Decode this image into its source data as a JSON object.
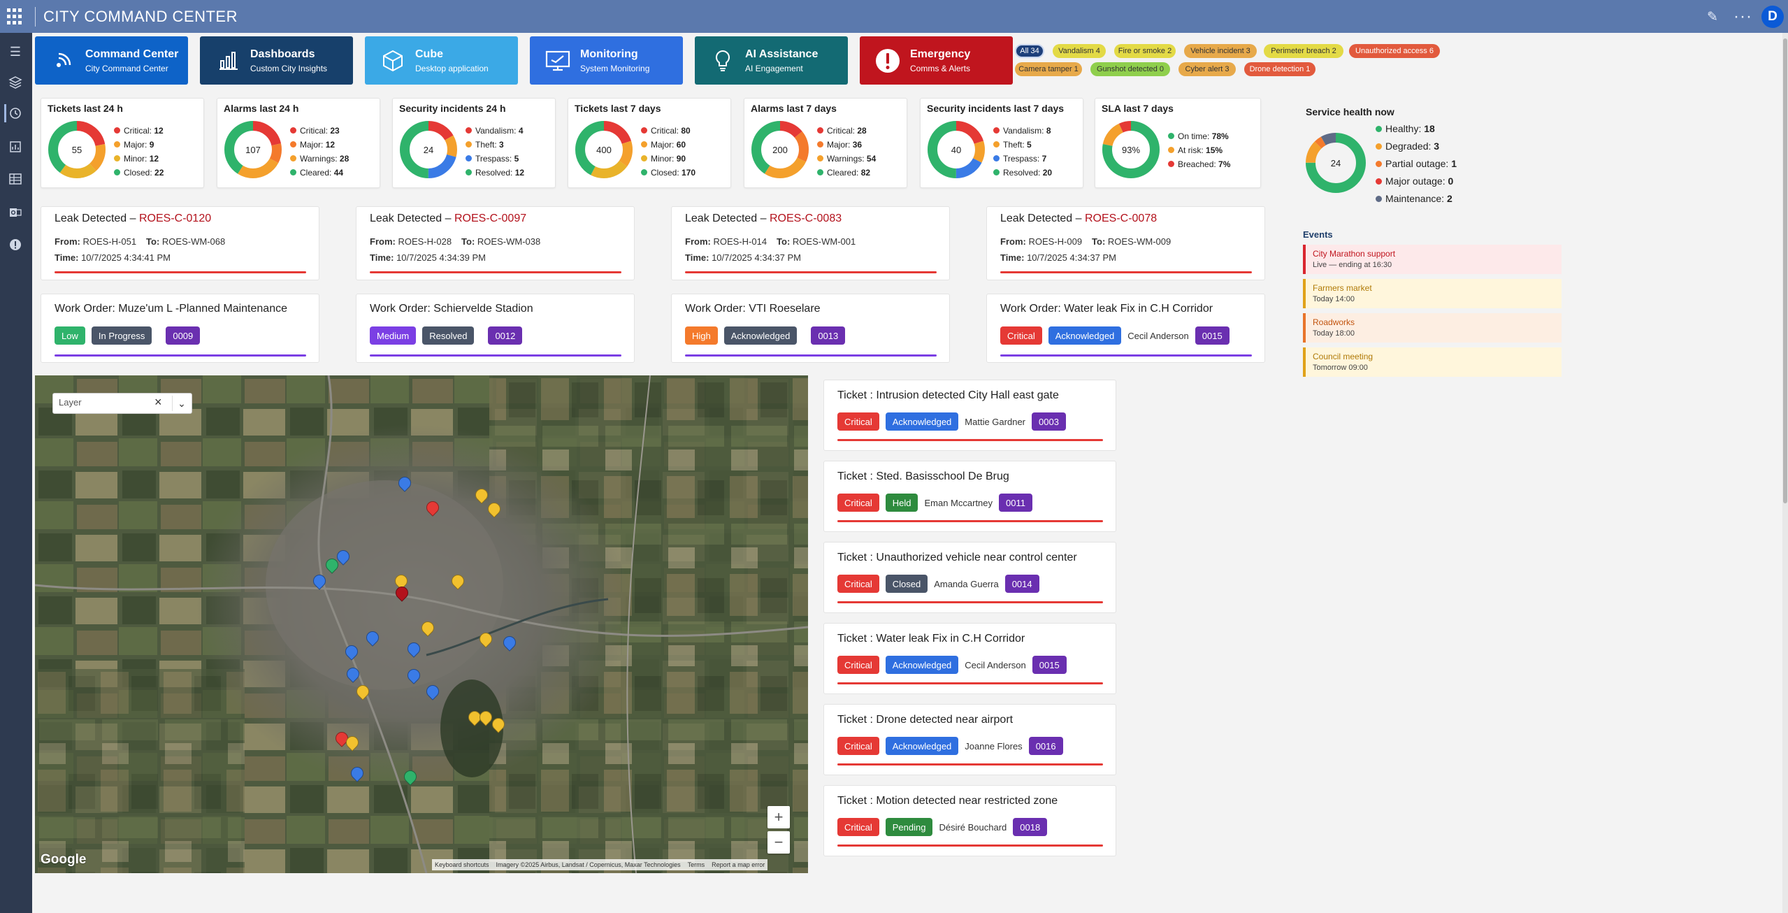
{
  "app": {
    "title": "CITY COMMAND CENTER",
    "user_initial": "D"
  },
  "nav_tiles": [
    {
      "name": "Command Center",
      "sub": "City Command Center",
      "color": "#0e63c8",
      "icon": "signal-icon"
    },
    {
      "name": "Dashboards",
      "sub": "Custom City Insights",
      "color": "#17406b",
      "icon": "bar-chart-icon"
    },
    {
      "name": "Cube",
      "sub": "Desktop application",
      "color": "#3ba9e6",
      "icon": "cube-icon"
    },
    {
      "name": "Monitoring",
      "sub": "System Monitoring",
      "color": "#2f6fe0",
      "icon": "monitor-icon"
    },
    {
      "name": "AI Assistance",
      "sub": "AI Engagement",
      "color": "#136a73",
      "icon": "lightbulb-icon"
    },
    {
      "name": "Emergency",
      "sub": "Comms & Alerts",
      "color": "#c0151e",
      "icon": "alert-icon"
    }
  ],
  "chips": [
    {
      "label": "All 34",
      "bg": "#1d3f7a",
      "fg": "#ffffff"
    },
    {
      "label": "Vandalism 4",
      "bg": "#e3da46",
      "fg": "#333333"
    },
    {
      "label": "Fire or smoke 2",
      "bg": "#e3da46",
      "fg": "#333333"
    },
    {
      "label": "Vehicle incident 3",
      "bg": "#e7a94a",
      "fg": "#333333"
    },
    {
      "label": "Perimeter breach 2",
      "bg": "#e3da46",
      "fg": "#333333"
    },
    {
      "label": "Unauthorized access 6",
      "bg": "#e25a3d",
      "fg": "#ffffff"
    },
    {
      "label": "Camera tamper 1",
      "bg": "#e7a94a",
      "fg": "#333333"
    },
    {
      "label": "Gunshot detected 0",
      "bg": "#8fcf4c",
      "fg": "#333333"
    },
    {
      "label": "Cyber alert 3",
      "bg": "#e7a94a",
      "fg": "#333333"
    },
    {
      "label": "Drone detection 1",
      "bg": "#e25a3d",
      "fg": "#ffffff"
    }
  ],
  "stats": [
    {
      "title": "Tickets last 24 h",
      "total": "55",
      "items": [
        {
          "label": "Critical:",
          "value": "12",
          "color": "#e53935"
        },
        {
          "label": "Major:",
          "value": "9",
          "color": "#f4a02c"
        },
        {
          "label": "Minor:",
          "value": "12",
          "color": "#e9b32a"
        },
        {
          "label": "Closed:",
          "value": "22",
          "color": "#2fb36b"
        }
      ]
    },
    {
      "title": "Alarms last 24 h",
      "total": "107",
      "items": [
        {
          "label": "Critical:",
          "value": "23",
          "color": "#e53935"
        },
        {
          "label": "Major:",
          "value": "12",
          "color": "#f47a2c"
        },
        {
          "label": "Warnings:",
          "value": "28",
          "color": "#f4a02c"
        },
        {
          "label": "Cleared:",
          "value": "44",
          "color": "#2fb36b"
        }
      ]
    },
    {
      "title": "Security incidents 24 h",
      "total": "24",
      "items": [
        {
          "label": "Vandalism:",
          "value": "4",
          "color": "#e53935"
        },
        {
          "label": "Theft:",
          "value": "3",
          "color": "#f4a02c"
        },
        {
          "label": "Trespass:",
          "value": "5",
          "color": "#3a7be6"
        },
        {
          "label": "Resolved:",
          "value": "12",
          "color": "#2fb36b"
        }
      ]
    },
    {
      "title": "Tickets last 7 days",
      "total": "400",
      "items": [
        {
          "label": "Critical:",
          "value": "80",
          "color": "#e53935"
        },
        {
          "label": "Major:",
          "value": "60",
          "color": "#f4a02c"
        },
        {
          "label": "Minor:",
          "value": "90",
          "color": "#e9b32a"
        },
        {
          "label": "Closed:",
          "value": "170",
          "color": "#2fb36b"
        }
      ]
    },
    {
      "title": "Alarms last 7 days",
      "total": "200",
      "items": [
        {
          "label": "Critical:",
          "value": "28",
          "color": "#e53935"
        },
        {
          "label": "Major:",
          "value": "36",
          "color": "#f47a2c"
        },
        {
          "label": "Warnings:",
          "value": "54",
          "color": "#f4a02c"
        },
        {
          "label": "Cleared:",
          "value": "82",
          "color": "#2fb36b"
        }
      ]
    },
    {
      "title": "Security incidents last 7 days",
      "total": "40",
      "items": [
        {
          "label": "Vandalism:",
          "value": "8",
          "color": "#e53935"
        },
        {
          "label": "Theft:",
          "value": "5",
          "color": "#f4a02c"
        },
        {
          "label": "Trespass:",
          "value": "7",
          "color": "#3a7be6"
        },
        {
          "label": "Resolved:",
          "value": "20",
          "color": "#2fb36b"
        }
      ]
    },
    {
      "title": "SLA last 7 days",
      "total": "93%",
      "items": [
        {
          "label": "On time:",
          "value": "78%",
          "color": "#2fb36b"
        },
        {
          "label": "At risk:",
          "value": "15%",
          "color": "#f4a02c"
        },
        {
          "label": "Breached:",
          "value": "7%",
          "color": "#e53935"
        }
      ]
    }
  ],
  "service_health": {
    "title": "Service health now",
    "total": "24",
    "items": [
      {
        "label": "Healthy:",
        "value": "18",
        "color": "#2fb36b"
      },
      {
        "label": "Degraded:",
        "value": "3",
        "color": "#f4a02c"
      },
      {
        "label": "Partial outage:",
        "value": "1",
        "color": "#f47a2c"
      },
      {
        "label": "Major outage:",
        "value": "0",
        "color": "#e53935"
      },
      {
        "label": "Maintenance:",
        "value": "2",
        "color": "#5e6b86"
      }
    ]
  },
  "events": {
    "title": "Events",
    "items": [
      {
        "name": "City Marathon support",
        "sub": "Live — ending at 16:30",
        "color": "#d9262f",
        "bg": "#fde9ea",
        "fg": "#c0151e"
      },
      {
        "name": "Farmers market",
        "sub": "Today 14:00",
        "color": "#e0a21a",
        "bg": "#fff6dc",
        "fg": "#b07a08"
      },
      {
        "name": "Roadworks",
        "sub": "Today 18:00",
        "color": "#e8742a",
        "bg": "#fdeee2",
        "fg": "#c2540f"
      },
      {
        "name": "Council meeting",
        "sub": "Tomorrow 09:00",
        "color": "#e0a21a",
        "bg": "#fff6dc",
        "fg": "#b07a08"
      }
    ]
  },
  "leaks": [
    {
      "prefix": "Leak Detected – ",
      "id": "ROES-C-0120",
      "from_label": "From:",
      "from": "ROES-H-051",
      "to_label": "To:",
      "to": "ROES-WM-068",
      "time_label": "Time:",
      "time": "10/7/2025 4:34:41 PM"
    },
    {
      "prefix": "Leak Detected – ",
      "id": "ROES-C-0097",
      "from_label": "From:",
      "from": "ROES-H-028",
      "to_label": "To:",
      "to": "ROES-WM-038",
      "time_label": "Time:",
      "time": "10/7/2025 4:34:39 PM"
    },
    {
      "prefix": "Leak Detected – ",
      "id": "ROES-C-0083",
      "from_label": "From:",
      "from": "ROES-H-014",
      "to_label": "To:",
      "to": "ROES-WM-001",
      "time_label": "Time:",
      "time": "10/7/2025 4:34:37 PM"
    },
    {
      "prefix": "Leak Detected – ",
      "id": "ROES-C-0078",
      "from_label": "From:",
      "from": "ROES-H-009",
      "to_label": "To:",
      "to": "ROES-WM-009",
      "time_label": "Time:",
      "time": "10/7/2025 4:34:37 PM"
    }
  ],
  "work_orders": [
    {
      "title": "Work Order: Muze'um L -Planned Maintenance",
      "priority": "Low",
      "priority_color": "#2fb36b",
      "status": "In Progress",
      "status_color": "#4a5568",
      "person": "",
      "id": "0009"
    },
    {
      "title": "Work Order: Schiervelde Stadion",
      "priority": "Medium",
      "priority_color": "#7b3fe4",
      "status": "Resolved",
      "status_color": "#4a5568",
      "person": "",
      "id": "0012"
    },
    {
      "title": "Work Order: VTI Roeselare",
      "priority": "High",
      "priority_color": "#f47a2c",
      "status": "Acknowledged",
      "status_color": "#4a5568",
      "person": "",
      "id": "0013"
    },
    {
      "title": "Work Order: Water leak Fix in C.H Corridor",
      "priority": "Critical",
      "priority_color": "#e53935",
      "status": "Acknowledged",
      "status_color": "#2f6fe0",
      "person": "Cecil Anderson",
      "id": "0015"
    }
  ],
  "map": {
    "layer_placeholder": "Layer",
    "google": "Google",
    "attribution": [
      "Keyboard shortcuts",
      "Imagery ©2025 Airbus, Landsat / Copernicus, Maxar Technologies",
      "Terms",
      "Report a map error"
    ]
  },
  "tickets": [
    {
      "title": "Ticket : Intrusion detected City Hall east gate",
      "priority": "Critical",
      "status": "Acknowledged",
      "status_color": "#2f6fe0",
      "person": "Mattie Gardner",
      "id": "0003"
    },
    {
      "title": "Ticket : Sted. Basisschool De Brug",
      "priority": "Critical",
      "status": "Held",
      "status_color": "#2e8b3e",
      "person": "Eman Mccartney",
      "id": "0011"
    },
    {
      "title": "Ticket : Unauthorized vehicle near control center",
      "priority": "Critical",
      "status": "Closed",
      "status_color": "#4a5568",
      "person": "Amanda Guerra",
      "id": "0014"
    },
    {
      "title": "Ticket : Water leak Fix in C.H Corridor",
      "priority": "Critical",
      "status": "Acknowledged",
      "status_color": "#2f6fe0",
      "person": "Cecil Anderson",
      "id": "0015"
    },
    {
      "title": "Ticket : Drone detected near airport",
      "priority": "Critical",
      "status": "Acknowledged",
      "status_color": "#2f6fe0",
      "person": "Joanne Flores",
      "id": "0016"
    },
    {
      "title": "Ticket : Motion detected near restricted zone",
      "priority": "Critical",
      "status": "Pending",
      "status_color": "#2e8b3e",
      "person": "Désiré Bouchard",
      "id": "0018"
    }
  ],
  "colors": {
    "critical": "#e53935",
    "id_badge": "#6a2fb0",
    "topbar": "#5b79ad",
    "sidebar": "#2e3a50"
  }
}
